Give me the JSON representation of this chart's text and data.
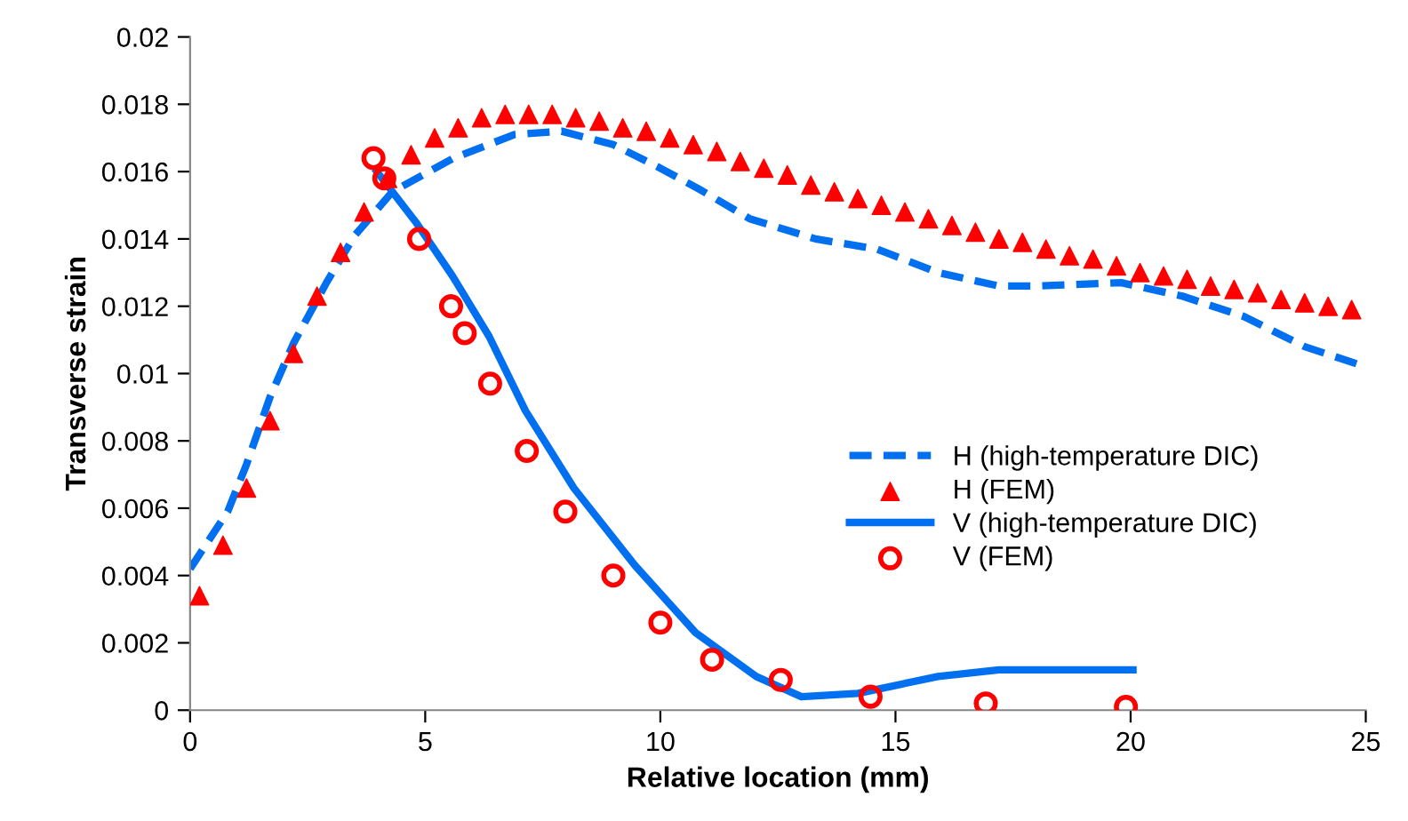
{
  "chart_data": {
    "type": "line",
    "xlabel": "Relative location (mm)",
    "ylabel": "Transverse strain",
    "xlim": [
      0,
      25
    ],
    "xticks": [
      0,
      5,
      10,
      15,
      20,
      25
    ],
    "ylim": [
      0,
      0.02
    ],
    "yticks": [
      0,
      0.002,
      0.004,
      0.006,
      0.008,
      0.01,
      0.012,
      0.014,
      0.016,
      0.018,
      0.02
    ],
    "grid": false,
    "legend": "right",
    "series": [
      {
        "name": "H (high-temperature DIC)",
        "line_style": "dashed",
        "marker": "none",
        "color": "#0070f0",
        "x": [
          0,
          0.8,
          1.2,
          1.7,
          2.2,
          2.9,
          3.5,
          4.3,
          5.6,
          6.9,
          7.9,
          9.0,
          10.0,
          10.8,
          11.9,
          13.3,
          14.6,
          15.9,
          17.2,
          18.0,
          19.8,
          21.1,
          22.4,
          23.7,
          25.0
        ],
        "values": [
          0.0042,
          0.0059,
          0.0073,
          0.0093,
          0.0109,
          0.0127,
          0.0141,
          0.0154,
          0.0164,
          0.0171,
          0.0172,
          0.0168,
          0.0161,
          0.0155,
          0.0146,
          0.014,
          0.0137,
          0.013,
          0.0126,
          0.0126,
          0.0127,
          0.0123,
          0.0117,
          0.0108,
          0.0102
        ]
      },
      {
        "name": "H (FEM)",
        "type": "scatter",
        "marker": "triangle",
        "color": "#ff0000",
        "x": [
          0.2,
          0.7,
          1.2,
          1.7,
          2.2,
          2.7,
          3.2,
          3.7,
          4.2,
          4.7,
          5.2,
          5.7,
          6.2,
          6.7,
          7.2,
          7.7,
          8.2,
          8.7,
          9.2,
          9.7,
          10.2,
          10.7,
          11.2,
          11.7,
          12.2,
          12.7,
          13.2,
          13.7,
          14.2,
          14.7,
          15.2,
          15.7,
          16.2,
          16.7,
          17.2,
          17.7,
          18.2,
          18.7,
          19.2,
          19.7,
          20.2,
          20.7,
          21.2,
          21.7,
          22.2,
          22.7,
          23.2,
          23.7,
          24.2,
          24.7
        ],
        "values": [
          0.0034,
          0.0049,
          0.0066,
          0.0086,
          0.0106,
          0.0123,
          0.0136,
          0.0148,
          0.0158,
          0.0165,
          0.017,
          0.0173,
          0.0176,
          0.0177,
          0.0177,
          0.0177,
          0.0176,
          0.0175,
          0.0173,
          0.0172,
          0.017,
          0.0168,
          0.0166,
          0.0163,
          0.0161,
          0.0159,
          0.0156,
          0.0154,
          0.0152,
          0.015,
          0.0148,
          0.0146,
          0.0144,
          0.0142,
          0.014,
          0.0139,
          0.0137,
          0.0135,
          0.0134,
          0.0132,
          0.013,
          0.0129,
          0.0128,
          0.0126,
          0.0125,
          0.0124,
          0.0122,
          0.0121,
          0.012,
          0.0119
        ]
      },
      {
        "name": "V (high-temperature DIC)",
        "line_style": "solid",
        "marker": "none",
        "color": "#0070f0",
        "x": [
          3.97,
          4.8,
          5.58,
          6.36,
          7.13,
          8.16,
          9.46,
          10.75,
          12.04,
          13.0,
          14.2,
          15.9,
          17.2,
          20.05
        ],
        "values": [
          0.016,
          0.0145,
          0.0129,
          0.0111,
          0.0089,
          0.0066,
          0.0043,
          0.0023,
          0.001,
          0.0004,
          0.0005,
          0.001,
          0.0012,
          0.0012
        ]
      },
      {
        "name": "V (FEM)",
        "type": "scatter",
        "marker": "circle",
        "color": "#ff0000",
        "x": [
          3.9,
          4.13,
          4.87,
          5.55,
          5.84,
          6.38,
          7.16,
          7.98,
          9.0,
          10.0,
          11.1,
          12.56,
          14.47,
          16.92,
          19.9
        ],
        "values": [
          0.0164,
          0.0158,
          0.014,
          0.012,
          0.0112,
          0.0097,
          0.0077,
          0.0059,
          0.004,
          0.0026,
          0.0015,
          0.0009,
          0.0004,
          0.0002,
          0.0001
        ]
      }
    ]
  }
}
